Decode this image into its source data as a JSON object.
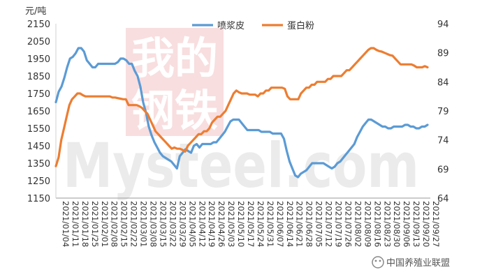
{
  "chart_data": {
    "type": "line",
    "unit_label": "元/吨",
    "yleft": {
      "min": 1150,
      "max": 2150,
      "ticks": [
        1150,
        1250,
        1350,
        1450,
        1550,
        1650,
        1750,
        1850,
        1950,
        2050,
        2150
      ]
    },
    "yright": {
      "min": 64,
      "max": 94,
      "ticks": [
        64,
        69,
        74,
        79,
        84,
        89,
        94
      ]
    },
    "x_tick_labels": [
      "2021/01/04",
      "2021/01/11",
      "2021/01/18",
      "2021/01/25",
      "2021/02/01",
      "2021/02/08",
      "2021/02/15",
      "2021/02/22",
      "2021/03/01",
      "2021/03/08",
      "2021/03/15",
      "2021/03/22",
      "2021/03/29",
      "2021/04/05",
      "2021/04/12",
      "2021/04/19",
      "2021/04/26",
      "2021/05/03",
      "2021/05/10",
      "2021/05/17",
      "2021/05/24",
      "2021/05/31",
      "2021/06/07",
      "2021/06/14",
      "2021/06/21",
      "2021/06/28",
      "2021/07/05",
      "2021/07/12",
      "2021/07/19",
      "2021/07/26",
      "2021/08/02",
      "2021/08/09",
      "2021/08/16",
      "2021/08/23",
      "2021/08/30",
      "2021/09/06",
      "2021/09/13",
      "2021/09/20",
      "2021/09/27"
    ],
    "x_tick_labels_note": "",
    "series": [
      {
        "name": "喷浆皮",
        "axis": "left",
        "color": "#5b9bd5",
        "values": [
          1700,
          1760,
          1790,
          1840,
          1900,
          1950,
          1960,
          1980,
          2010,
          2010,
          1990,
          1940,
          1920,
          1900,
          1900,
          1920,
          1920,
          1920,
          1920,
          1920,
          1920,
          1920,
          1930,
          1950,
          1950,
          1940,
          1920,
          1920,
          1880,
          1850,
          1790,
          1700,
          1640,
          1560,
          1510,
          1470,
          1440,
          1410,
          1390,
          1380,
          1370,
          1360,
          1340,
          1320,
          1390,
          1410,
          1430,
          1420,
          1410,
          1450,
          1460,
          1440,
          1460,
          1460,
          1460,
          1460,
          1470,
          1470,
          1490,
          1510,
          1530,
          1560,
          1590,
          1600,
          1600,
          1600,
          1580,
          1560,
          1540,
          1540,
          1540,
          1540,
          1540,
          1530,
          1530,
          1530,
          1530,
          1520,
          1520,
          1520,
          1520,
          1490,
          1420,
          1360,
          1320,
          1280,
          1270,
          1290,
          1300,
          1310,
          1330,
          1350,
          1350,
          1350,
          1350,
          1350,
          1340,
          1330,
          1320,
          1330,
          1350,
          1360,
          1380,
          1400,
          1420,
          1440,
          1460,
          1500,
          1530,
          1560,
          1580,
          1600,
          1600,
          1590,
          1580,
          1570,
          1560,
          1560,
          1550,
          1550,
          1560,
          1560,
          1560,
          1560,
          1570,
          1570,
          1560,
          1560,
          1550,
          1550,
          1560,
          1560,
          1570
        ]
      },
      {
        "name": "蛋白粉",
        "axis": "right",
        "color": "#ed7d31",
        "values": [
          69.5,
          71,
          74,
          76,
          78,
          80,
          81,
          81.5,
          82,
          82,
          81.7,
          81.5,
          81.5,
          81.5,
          81.5,
          81.5,
          81.5,
          81.5,
          81.5,
          81.5,
          81.5,
          81.3,
          81.3,
          81.2,
          81.1,
          81,
          81,
          80,
          80,
          80,
          80,
          79.8,
          79.5,
          79,
          78.5,
          77.5,
          76.5,
          75.5,
          75,
          74.5,
          74,
          73.5,
          73,
          72.5,
          72.7,
          72.5,
          72.5,
          72.3,
          72,
          73,
          73.5,
          74,
          74.5,
          75,
          75,
          75.5,
          75.5,
          76,
          77,
          77.5,
          78,
          78,
          78.5,
          79,
          80,
          81,
          82,
          82.5,
          82.2,
          82,
          82,
          82,
          81.8,
          81.8,
          81.8,
          81.5,
          82,
          82,
          82.5,
          82.5,
          83,
          83,
          83,
          83,
          83,
          82.8,
          81.5,
          81,
          81,
          81,
          81,
          82,
          82.5,
          83,
          83,
          83.5,
          83.5,
          84,
          84,
          84,
          84,
          84.5,
          84.5,
          85,
          85,
          85,
          85,
          85.5,
          86,
          86,
          86.5,
          87,
          87.5,
          88,
          88.5,
          89,
          89.5,
          89.8,
          89.8,
          89.5,
          89.3,
          89.2,
          89,
          88.8,
          88.6,
          88.5,
          88,
          87.5,
          87,
          87,
          87,
          87,
          87,
          86.8,
          86.5,
          86.5,
          86.5,
          86.7,
          86.5
        ]
      }
    ],
    "legend_position": "top-center",
    "grid": false
  },
  "watermark": {
    "line1": "我的",
    "line2": "钢铁",
    "brand": "Mysteel.com"
  },
  "source_note": "中国养殖业联盟"
}
